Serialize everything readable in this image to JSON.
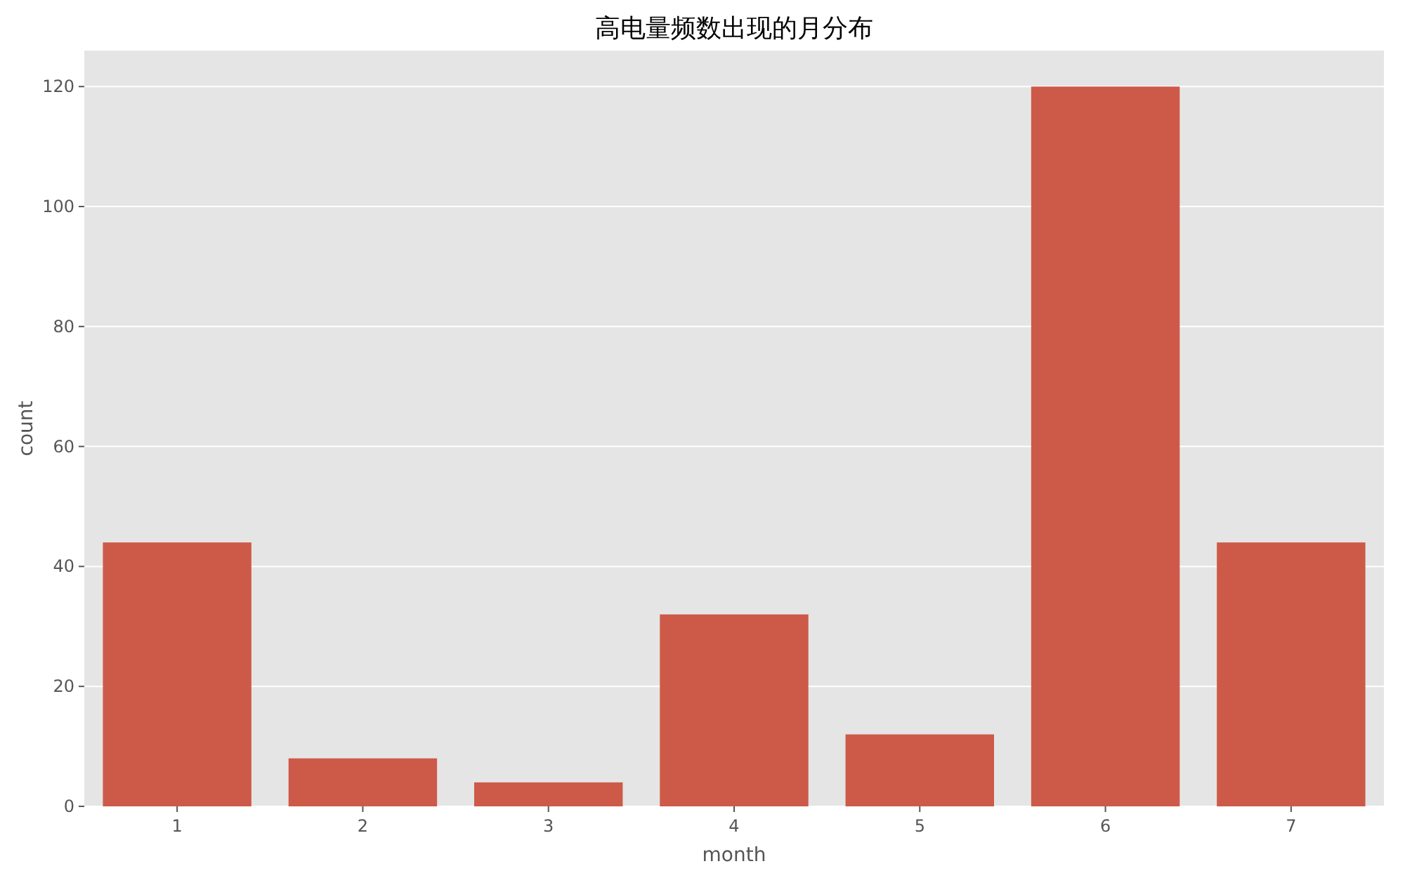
{
  "chart_data": {
    "type": "bar",
    "title": "高电量频数出现的月分布",
    "xlabel": "month",
    "ylabel": "count",
    "categories": [
      "1",
      "2",
      "3",
      "4",
      "5",
      "6",
      "7"
    ],
    "values": [
      44,
      8,
      4,
      32,
      12,
      120,
      44
    ],
    "color": "#cd5a48",
    "ylim": [
      0,
      126
    ],
    "yticks": [
      0,
      20,
      40,
      60,
      80,
      100,
      120
    ],
    "grid": "y"
  }
}
